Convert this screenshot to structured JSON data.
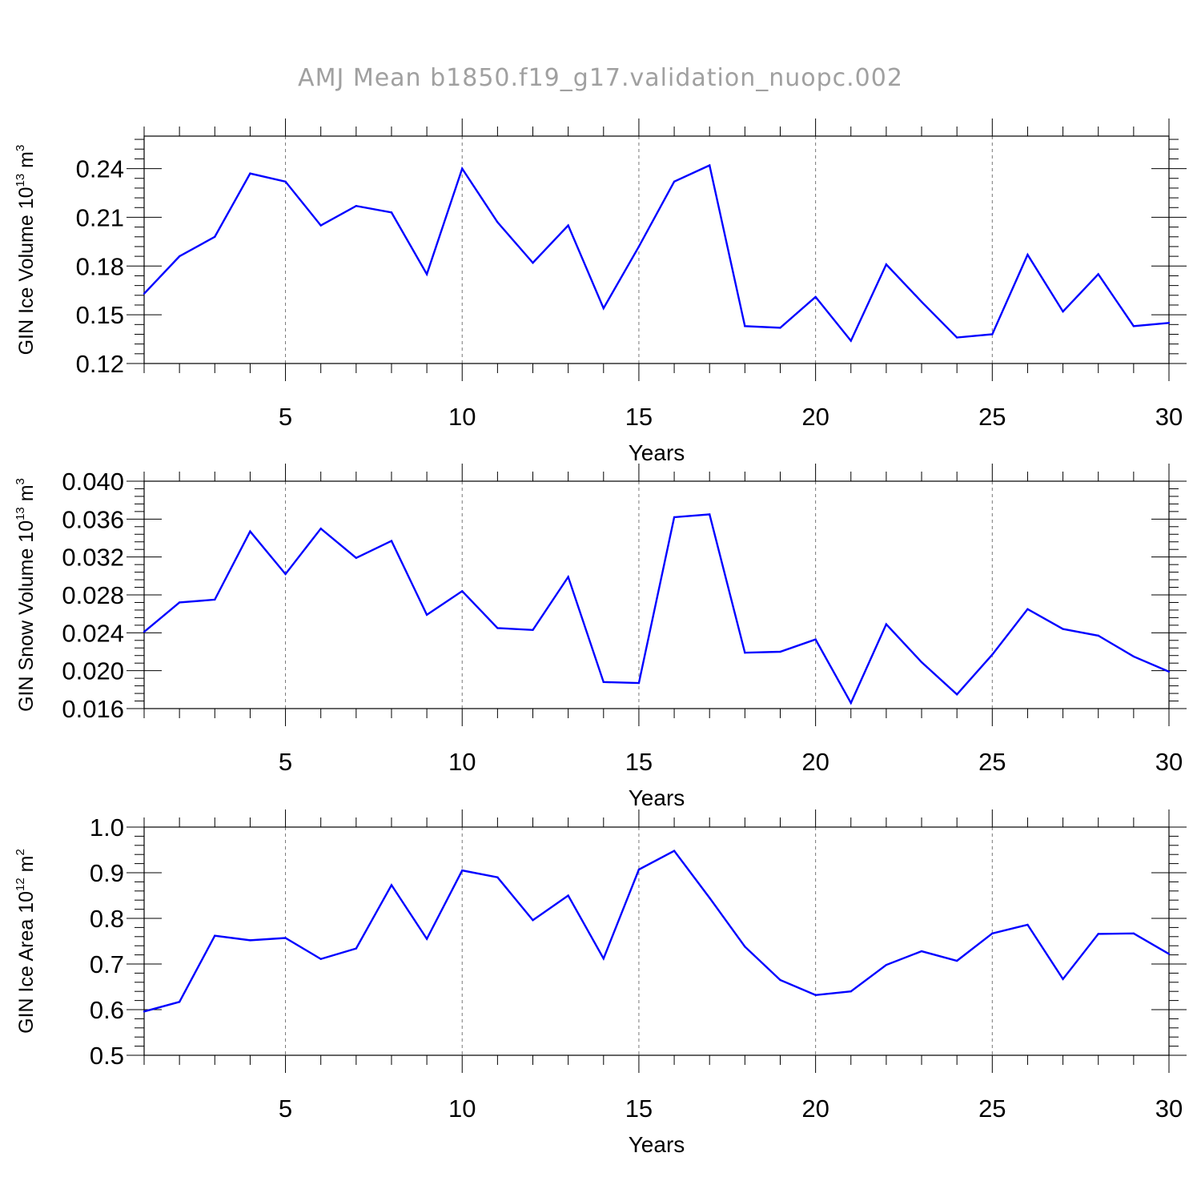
{
  "figure_title": "AMJ Mean b1850.f19_g17.validation_nuopc.002",
  "colors": {
    "line": "#0000ff",
    "axis": "#000000",
    "grid": "#777777",
    "title": "#a0a0a0"
  },
  "chart_data": [
    {
      "type": "line",
      "xlabel": "Years",
      "ylabel": {
        "prefix": "GIN Ice Volume 10",
        "exp": "13",
        "unit": " m",
        "unit_exp": "3"
      },
      "xlim": [
        1,
        30
      ],
      "ylim": [
        0.12,
        0.26
      ],
      "xticks": [
        5,
        10,
        15,
        20,
        25,
        30
      ],
      "yticks": [
        0.12,
        0.15,
        0.18,
        0.21,
        0.24
      ],
      "ytick_labels": [
        "0.12",
        "0.15",
        "0.18",
        "0.21",
        "0.24"
      ],
      "grid": "vertical dashed at major x ticks",
      "x": [
        1,
        2,
        3,
        4,
        5,
        6,
        7,
        8,
        9,
        10,
        11,
        12,
        13,
        14,
        15,
        16,
        17,
        18,
        19,
        20,
        21,
        22,
        23,
        24,
        25,
        26,
        27,
        28,
        29,
        30
      ],
      "series": [
        {
          "values": [
            0.163,
            0.186,
            0.198,
            0.237,
            0.232,
            0.205,
            0.217,
            0.213,
            0.175,
            0.24,
            0.207,
            0.182,
            0.205,
            0.154,
            0.192,
            0.232,
            0.242,
            0.143,
            0.142,
            0.161,
            0.134,
            0.181,
            0.158,
            0.136,
            0.138,
            0.187,
            0.152,
            0.175,
            0.143,
            0.145
          ]
        }
      ]
    },
    {
      "type": "line",
      "xlabel": "Years",
      "ylabel": {
        "prefix": "GIN Snow Volume 10",
        "exp": "13",
        "unit": " m",
        "unit_exp": "3"
      },
      "xlim": [
        1,
        30
      ],
      "ylim": [
        0.016,
        0.04
      ],
      "xticks": [
        5,
        10,
        15,
        20,
        25,
        30
      ],
      "yticks": [
        0.016,
        0.02,
        0.024,
        0.028,
        0.032,
        0.036,
        0.04
      ],
      "ytick_labels": [
        "0.016",
        "0.020",
        "0.024",
        "0.028",
        "0.032",
        "0.036",
        "0.040"
      ],
      "grid": "vertical dashed at major x ticks",
      "x": [
        1,
        2,
        3,
        4,
        5,
        6,
        7,
        8,
        9,
        10,
        11,
        12,
        13,
        14,
        15,
        16,
        17,
        18,
        19,
        20,
        21,
        22,
        23,
        24,
        25,
        26,
        27,
        28,
        29,
        30
      ],
      "series": [
        {
          "values": [
            0.0241,
            0.0272,
            0.0275,
            0.0347,
            0.0302,
            0.035,
            0.0319,
            0.0337,
            0.0259,
            0.0284,
            0.0245,
            0.0243,
            0.0299,
            0.0188,
            0.0187,
            0.0362,
            0.0365,
            0.0219,
            0.022,
            0.0233,
            0.0166,
            0.0249,
            0.0209,
            0.0175,
            0.0217,
            0.0265,
            0.0244,
            0.0237,
            0.0215,
            0.0199
          ]
        }
      ]
    },
    {
      "type": "line",
      "xlabel": "Years",
      "ylabel": {
        "prefix": "GIN Ice Area 10",
        "exp": "12",
        "unit": " m",
        "unit_exp": "2"
      },
      "xlim": [
        1,
        30
      ],
      "ylim": [
        0.5,
        1.0
      ],
      "xticks": [
        5,
        10,
        15,
        20,
        25,
        30
      ],
      "yticks": [
        0.5,
        0.6,
        0.7,
        0.8,
        0.9,
        1.0
      ],
      "ytick_labels": [
        "0.5",
        "0.6",
        "0.7",
        "0.8",
        "0.9",
        "1.0"
      ],
      "grid": "vertical dashed at major x ticks",
      "x": [
        1,
        2,
        3,
        4,
        5,
        6,
        7,
        8,
        9,
        10,
        11,
        12,
        13,
        14,
        15,
        16,
        17,
        18,
        19,
        20,
        21,
        22,
        23,
        24,
        25,
        26,
        27,
        28,
        29,
        30
      ],
      "series": [
        {
          "values": [
            0.596,
            0.617,
            0.762,
            0.752,
            0.757,
            0.711,
            0.734,
            0.873,
            0.755,
            0.905,
            0.89,
            0.796,
            0.85,
            0.712,
            0.907,
            0.948,
            0.845,
            0.738,
            0.665,
            0.632,
            0.64,
            0.698,
            0.728,
            0.707,
            0.767,
            0.786,
            0.667,
            0.766,
            0.767,
            0.722
          ]
        }
      ]
    }
  ]
}
